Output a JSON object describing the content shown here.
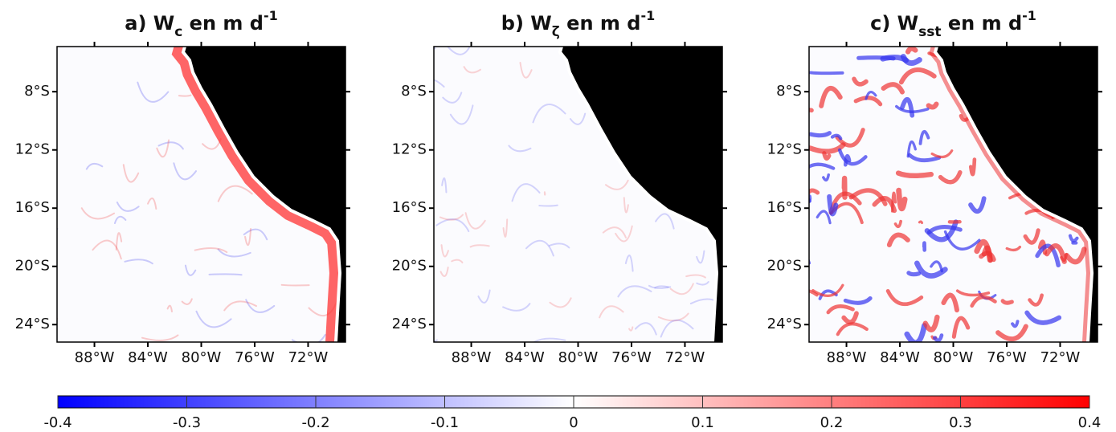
{
  "panels": [
    {
      "title": {
        "text": "a) W",
        "sub": "c",
        "rest": " en m d",
        "sup": "-1"
      }
    },
    {
      "title": {
        "text": "b) W",
        "sub": "ζ",
        "rest": " en m d",
        "sup": "-1"
      }
    },
    {
      "title": {
        "text": "c) W",
        "sub": "sst",
        "rest": " en m d",
        "sup": "-1"
      }
    }
  ],
  "map": {
    "xlim": [
      -90.8,
      -69.2
    ],
    "ylim": [
      -25.2,
      -4.9
    ],
    "xticks": [
      {
        "value": -88,
        "label": "88°W"
      },
      {
        "value": -84,
        "label": "84°W"
      },
      {
        "value": -80,
        "label": "80°W"
      },
      {
        "value": -76,
        "label": "76°W"
      },
      {
        "value": -72,
        "label": "72°W"
      }
    ],
    "yticks": [
      {
        "value": -8,
        "label": "8°S"
      },
      {
        "value": -12,
        "label": "12°S"
      },
      {
        "value": -16,
        "label": "16°S"
      },
      {
        "value": -20,
        "label": "20°S"
      },
      {
        "value": -24,
        "label": "24°S"
      }
    ]
  },
  "colorbar": {
    "lim": [
      -0.4,
      0.4
    ],
    "ticks": [
      -0.4,
      -0.3,
      -0.2,
      -0.1,
      0,
      0.1,
      0.2,
      0.3,
      0.4
    ],
    "colors": [
      "#0000ff",
      "#ffffff",
      "#ff0000"
    ]
  }
}
